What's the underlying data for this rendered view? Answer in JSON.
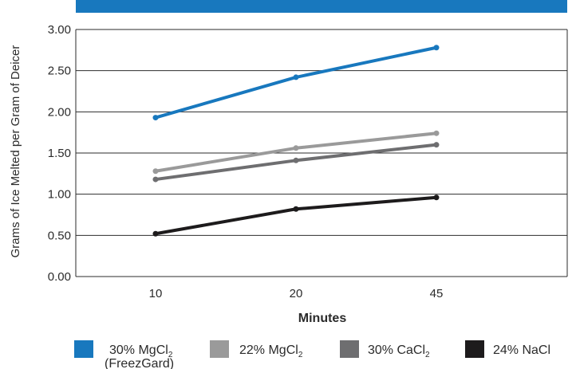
{
  "chart_data": {
    "type": "line",
    "title": "",
    "xlabel": "Minutes",
    "ylabel": "Grams of Ice Melted per Gram of Deicer",
    "categories": [
      "10",
      "20",
      "45"
    ],
    "ylim": [
      0,
      3.0
    ],
    "yticks": [
      "0.00",
      "0.50",
      "1.00",
      "1.50",
      "2.00",
      "2.50",
      "3.00"
    ],
    "grid": true,
    "legend_position": "bottom",
    "series": [
      {
        "name": "30% MgCl2 (FreezGard)",
        "label_base": "30% MgCl",
        "label_sub": "2",
        "label_line2": "(FreezGard)",
        "color": "#1878be",
        "values": [
          1.93,
          2.42,
          2.78
        ]
      },
      {
        "name": "22% MgCl2",
        "label_base": "22% MgCl",
        "label_sub": "2",
        "label_line2": "",
        "color": "#9a9a9a",
        "values": [
          1.28,
          1.56,
          1.74
        ]
      },
      {
        "name": "30% CaCl2",
        "label_base": "30% CaCl",
        "label_sub": "2",
        "label_line2": "",
        "color": "#6e6e70",
        "values": [
          1.18,
          1.41,
          1.6
        ]
      },
      {
        "name": "24% NaCl",
        "label_base": "24% NaCl",
        "label_sub": "",
        "label_line2": "",
        "color": "#1d1b1c",
        "values": [
          0.52,
          0.82,
          0.96
        ]
      }
    ],
    "header_bar_color": "#1878be"
  }
}
